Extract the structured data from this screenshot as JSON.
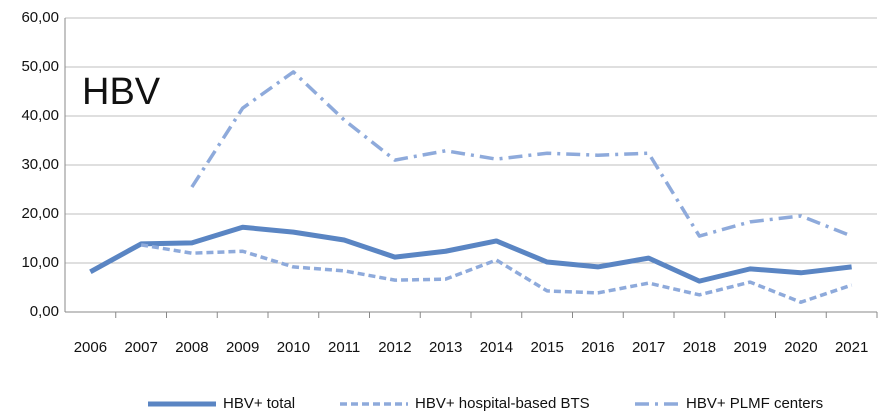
{
  "chart_data": {
    "type": "line",
    "annotation": "HBV",
    "categories": [
      "2006",
      "2007",
      "2008",
      "2009",
      "2010",
      "2011",
      "2012",
      "2013",
      "2014",
      "2015",
      "2016",
      "2017",
      "2018",
      "2019",
      "2020",
      "2021"
    ],
    "series": [
      {
        "name": "HBV+ total",
        "color": "#5a85c3",
        "dash": "solid",
        "values": [
          8.2,
          13.9,
          14.1,
          17.3,
          16.3,
          14.7,
          11.2,
          12.4,
          14.5,
          10.2,
          9.2,
          11.0,
          6.3,
          8.8,
          8.0,
          9.2
        ]
      },
      {
        "name": "HBV+ hospital-based BTS",
        "color": "#8eaadb",
        "dash": "dashed",
        "values": [
          null,
          13.7,
          12.0,
          12.4,
          9.2,
          8.4,
          6.5,
          6.7,
          10.6,
          4.3,
          3.9,
          5.9,
          3.5,
          6.1,
          2.0,
          5.5
        ]
      },
      {
        "name": "HBV+ PLMF centers",
        "color": "#8eaadb",
        "dash": "dashdot",
        "values": [
          null,
          null,
          25.5,
          41.6,
          49.0,
          39.2,
          31.0,
          32.9,
          31.2,
          32.4,
          32.0,
          32.4,
          15.5,
          18.4,
          19.6,
          15.5
        ]
      }
    ],
    "ylim": [
      0,
      60
    ],
    "yticks": [
      {
        "value": 0,
        "label": "0,00"
      },
      {
        "value": 10,
        "label": "10,00"
      },
      {
        "value": 20,
        "label": "20,00"
      },
      {
        "value": 30,
        "label": "30,00"
      },
      {
        "value": 40,
        "label": "40,00"
      },
      {
        "value": 50,
        "label": "50,00"
      },
      {
        "value": 60,
        "label": "60,00"
      }
    ],
    "grid": true,
    "legend": "bottom"
  }
}
